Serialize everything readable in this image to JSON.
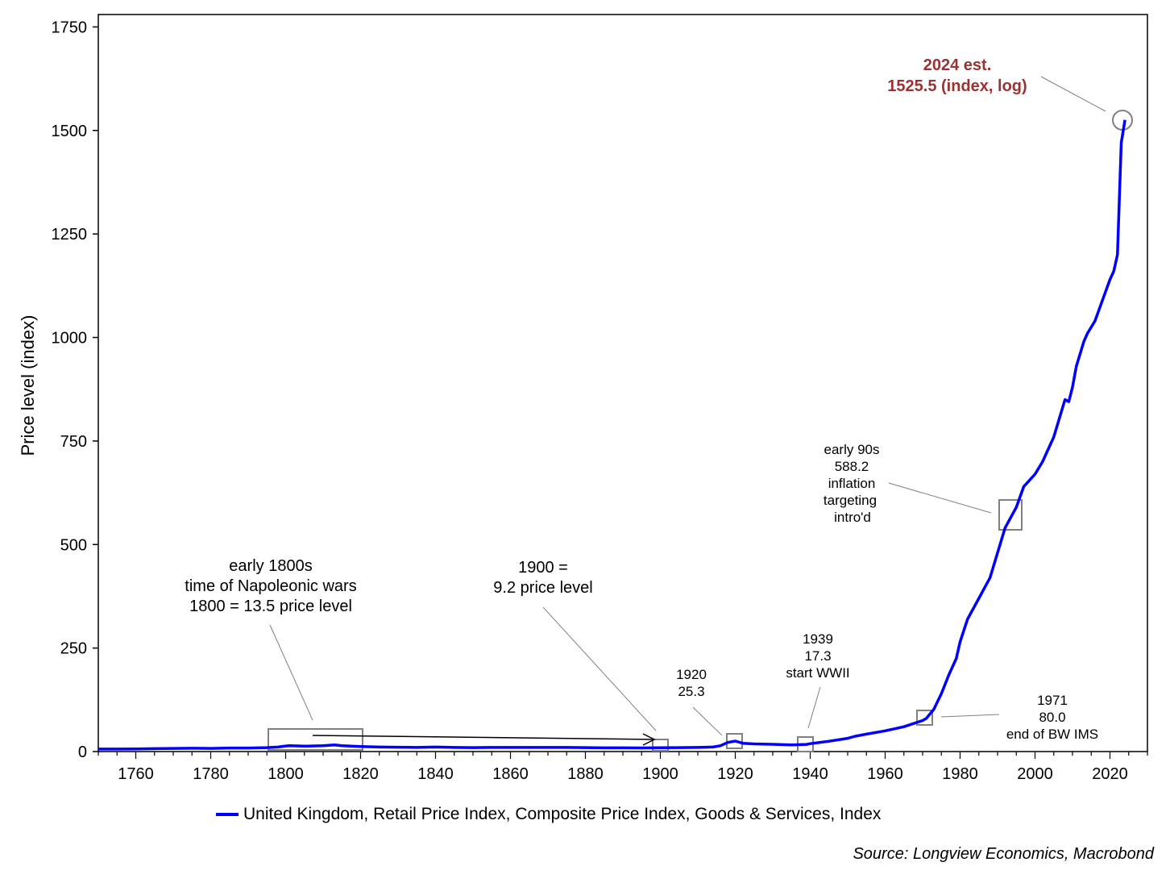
{
  "chart_data": {
    "type": "line",
    "ylabel": "Price level (index)",
    "xlabel": "",
    "xlim": [
      1750,
      2030
    ],
    "ylim": [
      0,
      1780
    ],
    "x_ticks": [
      1760,
      1780,
      1800,
      1820,
      1840,
      1860,
      1880,
      1900,
      1920,
      1940,
      1960,
      1980,
      2000,
      2020
    ],
    "y_ticks": [
      0,
      250,
      500,
      750,
      1000,
      1250,
      1500,
      1750
    ],
    "series": [
      {
        "name": "United Kingdom, Retail Price Index, Composite Price Index, Goods & Services, Index",
        "color": "#0000ff",
        "x": [
          1750,
          1755,
          1760,
          1765,
          1770,
          1775,
          1780,
          1785,
          1790,
          1795,
          1798,
          1800,
          1801,
          1805,
          1810,
          1813,
          1815,
          1820,
          1825,
          1830,
          1835,
          1840,
          1845,
          1850,
          1855,
          1860,
          1865,
          1870,
          1875,
          1880,
          1885,
          1890,
          1895,
          1900,
          1905,
          1910,
          1914,
          1916,
          1918,
          1920,
          1922,
          1925,
          1930,
          1935,
          1939,
          1940,
          1945,
          1950,
          1952,
          1955,
          1960,
          1965,
          1970,
          1971,
          1973,
          1975,
          1977,
          1979,
          1980,
          1982,
          1985,
          1988,
          1990,
          1992,
          1995,
          1997,
          2000,
          2002,
          2005,
          2008,
          2009,
          2010,
          2011,
          2013,
          2014,
          2016,
          2018,
          2020,
          2021,
          2022,
          2023,
          2024
        ],
        "y": [
          6,
          6,
          6.5,
          7,
          7.5,
          8,
          7.5,
          8.5,
          8.5,
          9.5,
          11,
          13.5,
          14,
          13,
          14,
          16,
          14,
          12,
          11,
          10.5,
          10,
          11,
          10,
          9.5,
          10,
          10,
          10,
          10,
          10,
          9.5,
          9,
          9,
          8.8,
          9.2,
          9.5,
          10,
          11,
          14,
          22,
          25.3,
          20,
          18.5,
          17.5,
          16,
          17.3,
          19,
          25,
          32,
          37,
          42,
          50,
          60,
          75,
          80,
          102,
          140,
          185,
          225,
          265,
          320,
          370,
          420,
          480,
          540,
          590,
          640,
          670,
          700,
          760,
          850,
          845,
          880,
          930,
          990,
          1010,
          1040,
          1090,
          1140,
          1160,
          1200,
          1470,
          1525.5
        ]
      }
    ],
    "annotations": {
      "napoleonic": {
        "line1": "early 1800s",
        "line2": "time of Napoleonic wars",
        "line3": "1800 = 13.5 price level"
      },
      "y1900": {
        "line1": "1900 =",
        "line2": "9.2 price level"
      },
      "y1920": {
        "line1": "1920",
        "line2": "25.3"
      },
      "y1939": {
        "line1": "1939",
        "line2": "17.3",
        "line3": "start WWII"
      },
      "y1971": {
        "line1": "1971",
        "line2": "80.0",
        "line3": "end of BW IMS"
      },
      "early90s": {
        "line1": "early 90s",
        "line2": "588.2",
        "line3": "inflation",
        "line4": "targeting",
        "line5": "intro'd"
      },
      "y2024": {
        "line1": "2024  est.",
        "line2": "1525.5 (index, log)",
        "color": "#993333"
      }
    }
  },
  "legend": {
    "label": "United Kingdom, Retail Price Index, Composite Price Index, Goods & Services, Index"
  },
  "source": "Source: Longview Economics, Macrobond"
}
